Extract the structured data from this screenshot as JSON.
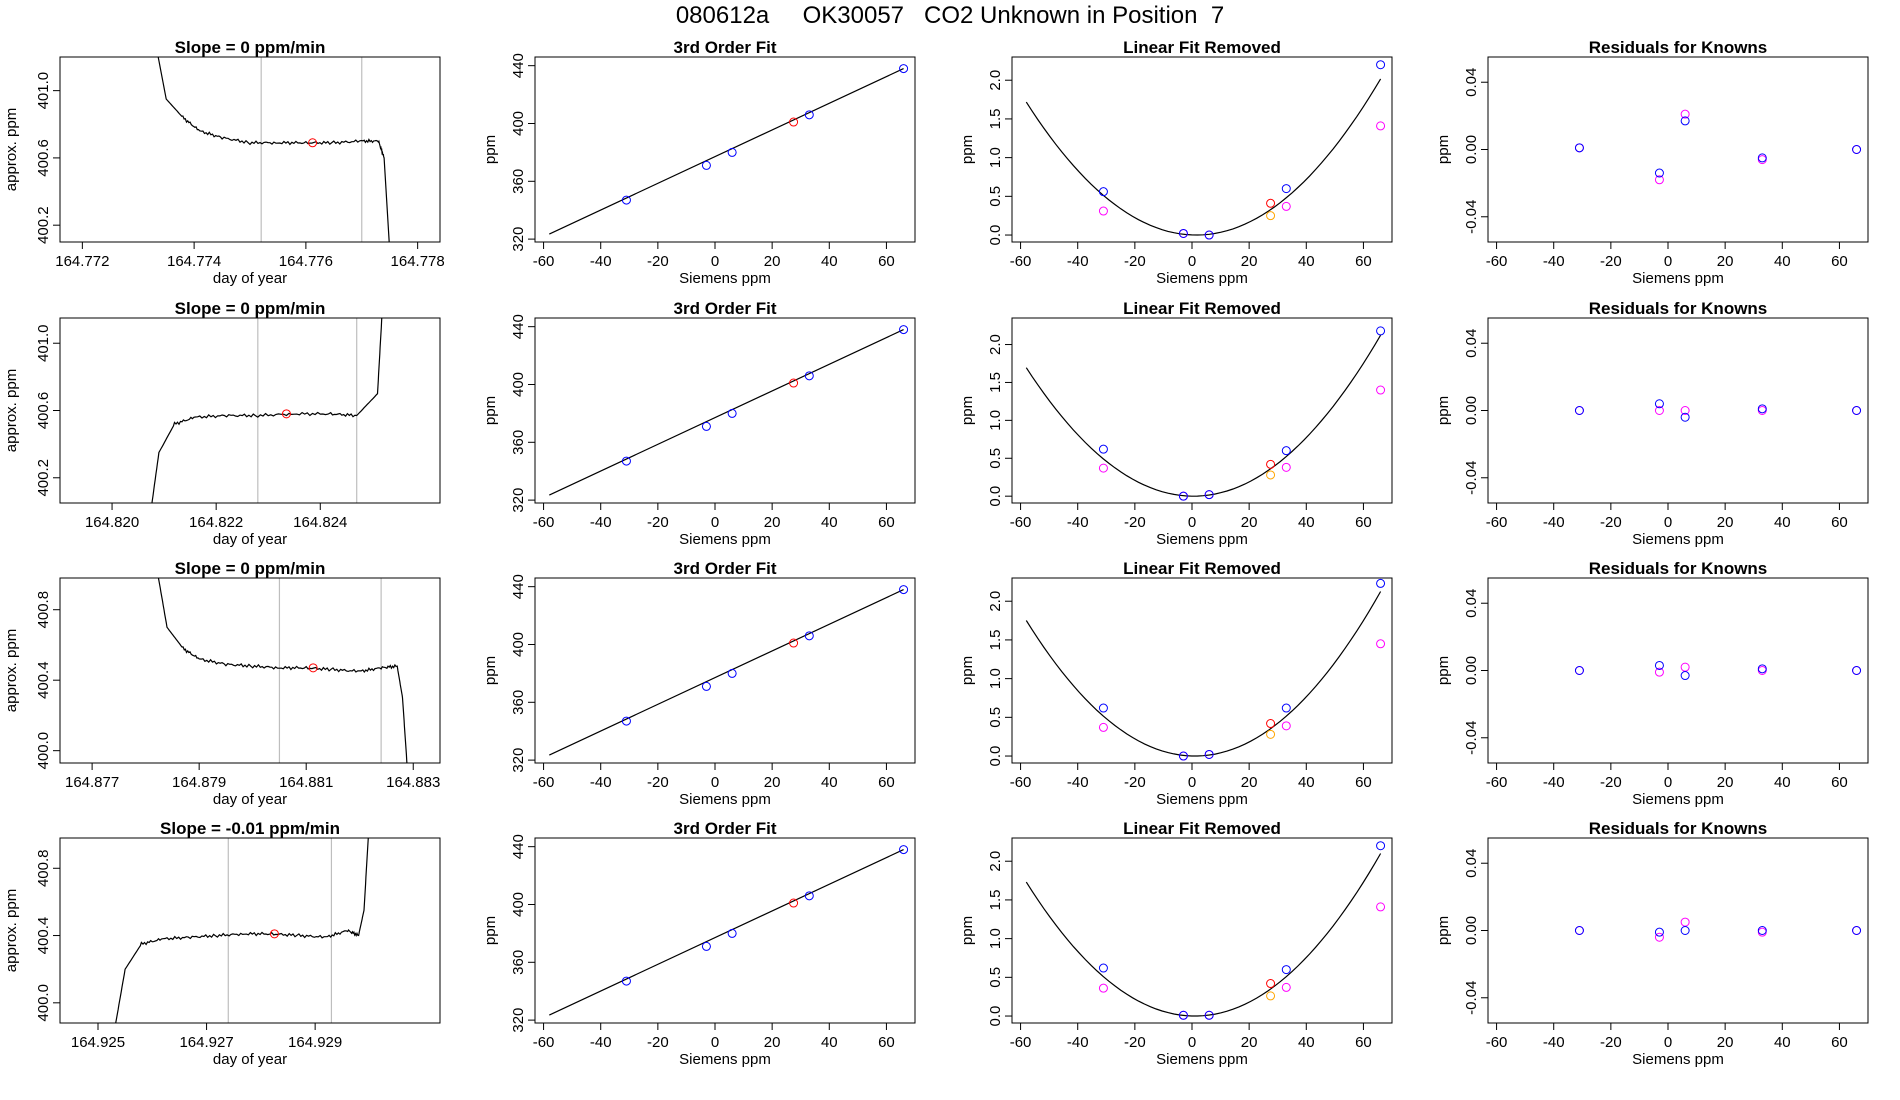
{
  "suptitle": "080612a     OK30057   CO2 Unknown in Position  7",
  "colors": {
    "known": "#0000ff",
    "unknown": "#ff0000",
    "raw": "#ff00ff",
    "orange": "#ffa500",
    "line": "#000000",
    "vline": "#bebebe"
  },
  "chart_data": [
    {
      "type": "line",
      "title": "Slope =  0  ppm/min",
      "xlabel": "day of year",
      "ylabel": "approx. ppm",
      "xlim": [
        164.7716,
        164.7784
      ],
      "ylim": [
        400.1,
        401.2
      ],
      "xticks": [
        164.772,
        164.774,
        164.776,
        164.778
      ],
      "xticklabels": [
        "164.772",
        "164.774",
        "164.776",
        "164.778"
      ],
      "yticks": [
        400.2,
        400.6,
        401.0
      ],
      "yticklabels": [
        "400.2",
        "400.6",
        "401.0"
      ],
      "vlines": [
        164.7752,
        164.777
      ],
      "marker": {
        "x": 164.77612,
        "y": 400.69
      },
      "x": [
        164.7733,
        164.7735,
        164.7738,
        164.7741,
        164.7745,
        164.775,
        164.7755,
        164.776,
        164.7765,
        164.777,
        164.7773,
        164.7774,
        164.7775
      ],
      "y": [
        401.3,
        400.95,
        400.84,
        400.76,
        400.72,
        400.69,
        400.69,
        400.69,
        400.69,
        400.7,
        400.7,
        400.6,
        400.05
      ]
    },
    {
      "type": "scatter",
      "title": "3rd Order Fit",
      "xlabel": "Siemens ppm",
      "ylabel": "ppm",
      "xlim": [
        -63,
        70
      ],
      "ylim": [
        318,
        446
      ],
      "xticks": [
        -60,
        -40,
        -20,
        0,
        20,
        40,
        60
      ],
      "yticks": [
        320,
        360,
        400,
        440
      ],
      "fit": {
        "x": [
          -58,
          66
        ],
        "y": [
          323.5,
          438
        ]
      },
      "series": [
        {
          "name": "knowns",
          "x": [
            -31,
            -3,
            6,
            33,
            66
          ],
          "y": [
            347,
            371,
            380,
            406,
            438
          ]
        },
        {
          "name": "unknown",
          "x": [
            27.5
          ],
          "y": [
            401
          ]
        }
      ]
    },
    {
      "type": "scatter",
      "title": "Linear Fit Removed",
      "xlabel": "Siemens ppm",
      "ylabel": "ppm",
      "xlim": [
        -63,
        70
      ],
      "ylim": [
        -0.09,
        2.3
      ],
      "xticks": [
        -60,
        -40,
        -20,
        0,
        20,
        40,
        60
      ],
      "yticks": [
        0,
        0.5,
        1,
        1.5,
        2
      ],
      "yticklabels": [
        "0.0",
        "0.5",
        "1.0",
        "1.5",
        "2.0"
      ],
      "curve": {
        "x0": 1.5,
        "a": 0.000485,
        "from": -58,
        "to": 66
      },
      "series": [
        {
          "name": "knowns",
          "x": [
            -31,
            -3,
            6,
            33,
            66
          ],
          "y": [
            0.56,
            0.02,
            0.0,
            0.6,
            2.2
          ]
        },
        {
          "name": "raw",
          "x": [
            -31,
            -3,
            6,
            33,
            66
          ],
          "y": [
            0.31,
            0.02,
            0.0,
            0.37,
            1.41
          ]
        },
        {
          "name": "unknown",
          "x": [
            27.5
          ],
          "y": [
            0.41
          ]
        },
        {
          "name": "unknown-raw",
          "x": [
            27.5
          ],
          "y": [
            0.25
          ]
        }
      ]
    },
    {
      "type": "scatter",
      "title": "Residuals for Knowns",
      "xlabel": "Siemens ppm",
      "ylabel": "ppm",
      "xlim": [
        -63,
        70
      ],
      "ylim": [
        -0.055,
        0.055
      ],
      "xticks": [
        -60,
        -40,
        -20,
        0,
        20,
        40,
        60
      ],
      "yticks": [
        -0.04,
        0,
        0.04
      ],
      "yticklabels": [
        "-0.04",
        "0.00",
        "0.04"
      ],
      "series": [
        {
          "name": "knowns",
          "x": [
            -31,
            -3,
            6,
            33,
            66
          ],
          "y": [
            0.001,
            -0.014,
            0.017,
            -0.005,
            0.0
          ]
        },
        {
          "name": "raw",
          "x": [
            -31,
            -3,
            6,
            33,
            66
          ],
          "y": [
            0.001,
            -0.018,
            0.021,
            -0.006,
            0.0
          ]
        }
      ]
    },
    {
      "type": "line",
      "title": "Slope =  0  ppm/min",
      "xlabel": "day of year",
      "ylabel": "approx. ppm",
      "xlim": [
        164.819,
        164.8263
      ],
      "ylim": [
        400.05,
        401.15
      ],
      "xticks": [
        164.82,
        164.822,
        164.824
      ],
      "xticklabels": [
        "164.820",
        "164.822",
        "164.824"
      ],
      "yticks": [
        400.2,
        400.6,
        401.0
      ],
      "yticklabels": [
        "400.2",
        "400.6",
        "401.0"
      ],
      "vlines": [
        164.8228,
        164.8247
      ],
      "marker": {
        "x": 164.82335,
        "y": 400.58
      },
      "x": [
        164.8207,
        164.8209,
        164.8212,
        164.8216,
        164.8222,
        164.8228,
        164.8235,
        164.8242,
        164.8247,
        164.8251,
        164.8252
      ],
      "y": [
        399.9,
        400.35,
        400.52,
        400.56,
        400.57,
        400.57,
        400.58,
        400.58,
        400.57,
        400.7,
        401.25
      ]
    },
    {
      "type": "scatter",
      "title": "3rd Order Fit",
      "xlabel": "Siemens ppm",
      "ylabel": "ppm",
      "xlim": [
        -63,
        70
      ],
      "ylim": [
        318,
        446
      ],
      "xticks": [
        -60,
        -40,
        -20,
        0,
        20,
        40,
        60
      ],
      "yticks": [
        320,
        360,
        400,
        440
      ],
      "fit": {
        "x": [
          -58,
          66
        ],
        "y": [
          323.5,
          438
        ]
      },
      "series": [
        {
          "name": "knowns",
          "x": [
            -31,
            -3,
            6,
            33,
            66
          ],
          "y": [
            347,
            371,
            380,
            406,
            438
          ]
        },
        {
          "name": "unknown",
          "x": [
            27.5
          ],
          "y": [
            401
          ]
        }
      ]
    },
    {
      "type": "scatter",
      "title": "Linear Fit Removed",
      "xlabel": "Siemens ppm",
      "ylabel": "ppm",
      "xlim": [
        -63,
        70
      ],
      "ylim": [
        -0.09,
        2.35
      ],
      "xticks": [
        -60,
        -40,
        -20,
        0,
        20,
        40,
        60
      ],
      "yticks": [
        0,
        0.5,
        1,
        1.5,
        2
      ],
      "yticklabels": [
        "0.0",
        "0.5",
        "1.0",
        "1.5",
        "2.0"
      ],
      "curve": {
        "x0": 0.5,
        "a": 0.000495,
        "from": -58,
        "to": 66
      },
      "series": [
        {
          "name": "knowns",
          "x": [
            -31,
            -3,
            6,
            33,
            66
          ],
          "y": [
            0.62,
            0.0,
            0.02,
            0.6,
            2.18
          ]
        },
        {
          "name": "raw",
          "x": [
            -31,
            -3,
            6,
            33,
            66
          ],
          "y": [
            0.37,
            0.0,
            0.02,
            0.38,
            1.4
          ]
        },
        {
          "name": "unknown",
          "x": [
            27.5
          ],
          "y": [
            0.42
          ]
        },
        {
          "name": "unknown-raw",
          "x": [
            27.5
          ],
          "y": [
            0.28
          ]
        }
      ]
    },
    {
      "type": "scatter",
      "title": "Residuals for Knowns",
      "xlabel": "Siemens ppm",
      "ylabel": "ppm",
      "xlim": [
        -63,
        70
      ],
      "ylim": [
        -0.055,
        0.055
      ],
      "xticks": [
        -60,
        -40,
        -20,
        0,
        20,
        40,
        60
      ],
      "yticks": [
        -0.04,
        0,
        0.04
      ],
      "yticklabels": [
        "-0.04",
        "0.00",
        "0.04"
      ],
      "series": [
        {
          "name": "knowns",
          "x": [
            -31,
            -3,
            6,
            33,
            66
          ],
          "y": [
            0.0,
            0.004,
            -0.004,
            0.001,
            0.0
          ]
        },
        {
          "name": "raw",
          "x": [
            -31,
            -3,
            6,
            33,
            66
          ],
          "y": [
            0.0,
            0.0,
            0.0,
            0.0,
            0.0
          ]
        }
      ]
    },
    {
      "type": "line",
      "title": "Slope =  0  ppm/min",
      "xlabel": "day of year",
      "ylabel": "approx. ppm",
      "xlim": [
        164.8764,
        164.8835
      ],
      "ylim": [
        399.93,
        400.98
      ],
      "xticks": [
        164.877,
        164.879,
        164.881,
        164.883
      ],
      "xticklabels": [
        "164.877",
        "164.879",
        "164.881",
        "164.883"
      ],
      "yticks": [
        400.0,
        400.4,
        400.8
      ],
      "yticklabels": [
        "400.0",
        "400.4",
        "400.8"
      ],
      "vlines": [
        164.8805,
        164.8824
      ],
      "marker": {
        "x": 164.88113,
        "y": 400.47
      },
      "x": [
        164.8782,
        164.8784,
        164.8787,
        164.879,
        164.8795,
        164.88,
        164.8805,
        164.881,
        164.8815,
        164.882,
        164.8824,
        164.8827,
        164.8828,
        164.8829
      ],
      "y": [
        401.05,
        400.7,
        400.58,
        400.52,
        400.49,
        400.48,
        400.47,
        400.47,
        400.46,
        400.45,
        400.47,
        400.48,
        400.3,
        399.85
      ]
    },
    {
      "type": "scatter",
      "title": "3rd Order Fit",
      "xlabel": "Siemens ppm",
      "ylabel": "ppm",
      "xlim": [
        -63,
        70
      ],
      "ylim": [
        318,
        446
      ],
      "xticks": [
        -60,
        -40,
        -20,
        0,
        20,
        40,
        60
      ],
      "yticks": [
        320,
        360,
        400,
        440
      ],
      "fit": {
        "x": [
          -58,
          66
        ],
        "y": [
          323.5,
          438
        ]
      },
      "series": [
        {
          "name": "knowns",
          "x": [
            -31,
            -3,
            6,
            33,
            66
          ],
          "y": [
            347,
            371,
            380,
            406,
            438
          ]
        },
        {
          "name": "unknown",
          "x": [
            27.5
          ],
          "y": [
            401
          ]
        }
      ]
    },
    {
      "type": "scatter",
      "title": "Linear Fit Removed",
      "xlabel": "Siemens ppm",
      "ylabel": "ppm",
      "xlim": [
        -63,
        70
      ],
      "ylim": [
        -0.09,
        2.3
      ],
      "xticks": [
        -60,
        -40,
        -20,
        0,
        20,
        40,
        60
      ],
      "yticks": [
        0,
        0.5,
        1,
        1.5,
        2
      ],
      "yticklabels": [
        "0.0",
        "0.5",
        "1.0",
        "1.5",
        "2.0"
      ],
      "curve": {
        "x0": 1.0,
        "a": 0.000503,
        "from": -58,
        "to": 66
      },
      "series": [
        {
          "name": "knowns",
          "x": [
            -31,
            -3,
            6,
            33,
            66
          ],
          "y": [
            0.62,
            0.0,
            0.02,
            0.62,
            2.23
          ]
        },
        {
          "name": "raw",
          "x": [
            -31,
            -3,
            6,
            33,
            66
          ],
          "y": [
            0.37,
            0.0,
            0.02,
            0.39,
            1.45
          ]
        },
        {
          "name": "unknown",
          "x": [
            27.5
          ],
          "y": [
            0.42
          ]
        },
        {
          "name": "unknown-raw",
          "x": [
            27.5
          ],
          "y": [
            0.28
          ]
        }
      ]
    },
    {
      "type": "scatter",
      "title": "Residuals for Knowns",
      "xlabel": "Siemens ppm",
      "ylabel": "ppm",
      "xlim": [
        -63,
        70
      ],
      "ylim": [
        -0.055,
        0.055
      ],
      "xticks": [
        -60,
        -40,
        -20,
        0,
        20,
        40,
        60
      ],
      "yticks": [
        -0.04,
        0,
        0.04
      ],
      "yticklabels": [
        "-0.04",
        "0.00",
        "0.04"
      ],
      "series": [
        {
          "name": "knowns",
          "x": [
            -31,
            -3,
            6,
            33,
            66
          ],
          "y": [
            0.0,
            0.003,
            -0.003,
            0.001,
            0.0
          ]
        },
        {
          "name": "raw",
          "x": [
            -31,
            -3,
            6,
            33,
            66
          ],
          "y": [
            0.0,
            -0.001,
            0.002,
            0.0,
            0.0
          ]
        }
      ]
    },
    {
      "type": "line",
      "title": "Slope =  -0.01  ppm/min",
      "xlabel": "day of year",
      "ylabel": "approx. ppm",
      "xlim": [
        164.9243,
        164.9313
      ],
      "ylim": [
        399.88,
        400.98
      ],
      "xticks": [
        164.925,
        164.927,
        164.929
      ],
      "xticklabels": [
        "164.925",
        "164.927",
        "164.929"
      ],
      "yticks": [
        400.0,
        400.4,
        400.8
      ],
      "yticklabels": [
        "400.0",
        "400.4",
        "400.8"
      ],
      "vlines": [
        164.9274,
        164.9293
      ],
      "marker": {
        "x": 164.92825,
        "y": 400.41
      },
      "x": [
        164.9253,
        164.9255,
        164.9258,
        164.9262,
        164.9267,
        164.9272,
        164.9277,
        164.9282,
        164.9287,
        164.9292,
        164.9296,
        164.9298,
        164.9299,
        164.93
      ],
      "y": [
        399.83,
        400.2,
        400.35,
        400.38,
        400.39,
        400.4,
        400.41,
        400.41,
        400.4,
        400.39,
        400.43,
        400.4,
        400.55,
        401.1
      ]
    },
    {
      "type": "scatter",
      "title": "3rd Order Fit",
      "xlabel": "Siemens ppm",
      "ylabel": "ppm",
      "xlim": [
        -63,
        70
      ],
      "ylim": [
        318,
        446
      ],
      "xticks": [
        -60,
        -40,
        -20,
        0,
        20,
        40,
        60
      ],
      "yticks": [
        320,
        360,
        400,
        440
      ],
      "fit": {
        "x": [
          -58,
          66
        ],
        "y": [
          323.5,
          438
        ]
      },
      "series": [
        {
          "name": "knowns",
          "x": [
            -31,
            -3,
            6,
            33,
            66
          ],
          "y": [
            347,
            371,
            380,
            406,
            438
          ]
        },
        {
          "name": "unknown",
          "x": [
            27.5
          ],
          "y": [
            401
          ]
        }
      ]
    },
    {
      "type": "scatter",
      "title": "Linear Fit Removed",
      "xlabel": "Siemens ppm",
      "ylabel": "ppm",
      "xlim": [
        -63,
        70
      ],
      "ylim": [
        -0.09,
        2.3
      ],
      "xticks": [
        -60,
        -40,
        -20,
        0,
        20,
        40,
        60
      ],
      "yticks": [
        0,
        0.5,
        1,
        1.5,
        2
      ],
      "yticklabels": [
        "0.0",
        "0.5",
        "1.0",
        "1.5",
        "2.0"
      ],
      "curve": {
        "x0": 1.0,
        "a": 0.000497,
        "from": -58,
        "to": 66
      },
      "series": [
        {
          "name": "knowns",
          "x": [
            -31,
            -3,
            6,
            33,
            66
          ],
          "y": [
            0.62,
            0.01,
            0.01,
            0.6,
            2.2
          ]
        },
        {
          "name": "raw",
          "x": [
            -31,
            -3,
            6,
            33,
            66
          ],
          "y": [
            0.36,
            0.01,
            0.01,
            0.37,
            1.41
          ]
        },
        {
          "name": "unknown",
          "x": [
            27.5
          ],
          "y": [
            0.42
          ]
        },
        {
          "name": "unknown-raw",
          "x": [
            27.5
          ],
          "y": [
            0.26
          ]
        }
      ]
    },
    {
      "type": "scatter",
      "title": "Residuals for Knowns",
      "xlabel": "Siemens ppm",
      "ylabel": "ppm",
      "xlim": [
        -63,
        70
      ],
      "ylim": [
        -0.055,
        0.055
      ],
      "xticks": [
        -60,
        -40,
        -20,
        0,
        20,
        40,
        60
      ],
      "yticks": [
        -0.04,
        0,
        0.04
      ],
      "yticklabels": [
        "-0.04",
        "0.00",
        "0.04"
      ],
      "series": [
        {
          "name": "knowns",
          "x": [
            -31,
            -3,
            6,
            33,
            66
          ],
          "y": [
            0.0,
            -0.001,
            0.0,
            0.0,
            0.0
          ]
        },
        {
          "name": "raw",
          "x": [
            -31,
            -3,
            6,
            33,
            66
          ],
          "y": [
            0.0,
            -0.004,
            0.005,
            -0.001,
            0.0
          ]
        }
      ]
    }
  ]
}
